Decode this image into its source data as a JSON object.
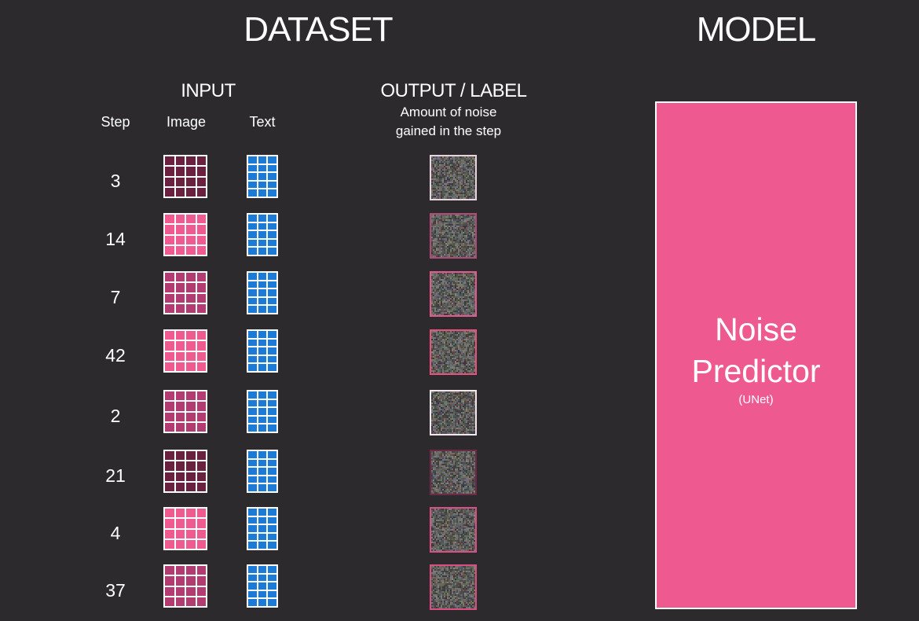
{
  "titles": {
    "dataset": "DATASET",
    "model": "MODEL"
  },
  "headers": {
    "input": "INPUT",
    "output_label": "OUTPUT  / LABEL",
    "output_desc_line1": "Amount of noise",
    "output_desc_line2": "gained in the step",
    "step": "Step",
    "image": "Image",
    "text": "Text"
  },
  "model": {
    "name_line1": "Noise",
    "name_line2": "Predictor",
    "subtitle": "(UNet)"
  },
  "colors": {
    "background": "#2c2a2d",
    "model_fill": "#ee5a8f",
    "text_icon": "#1b7bd6",
    "image_dark": "#6a2140",
    "image_mid": "#b23c72",
    "image_bright": "#ef5b90"
  },
  "rows": [
    {
      "step": "3",
      "image_shade": "image_dark",
      "noise_border": "#e8d4de"
    },
    {
      "step": "14",
      "image_shade": "image_bright",
      "noise_border": "#b04a78"
    },
    {
      "step": "7",
      "image_shade": "image_mid",
      "noise_border": "#e35a8e"
    },
    {
      "step": "42",
      "image_shade": "image_bright",
      "noise_border": "#e8527f"
    },
    {
      "step": "2",
      "image_shade": "image_mid",
      "noise_border": "#f3e7ed"
    },
    {
      "step": "21",
      "image_shade": "image_dark",
      "noise_border": "#6d2a48"
    },
    {
      "step": "4",
      "image_shade": "image_bright",
      "noise_border": "#d85085"
    },
    {
      "step": "37",
      "image_shade": "image_mid",
      "noise_border": "#d84f84"
    }
  ]
}
